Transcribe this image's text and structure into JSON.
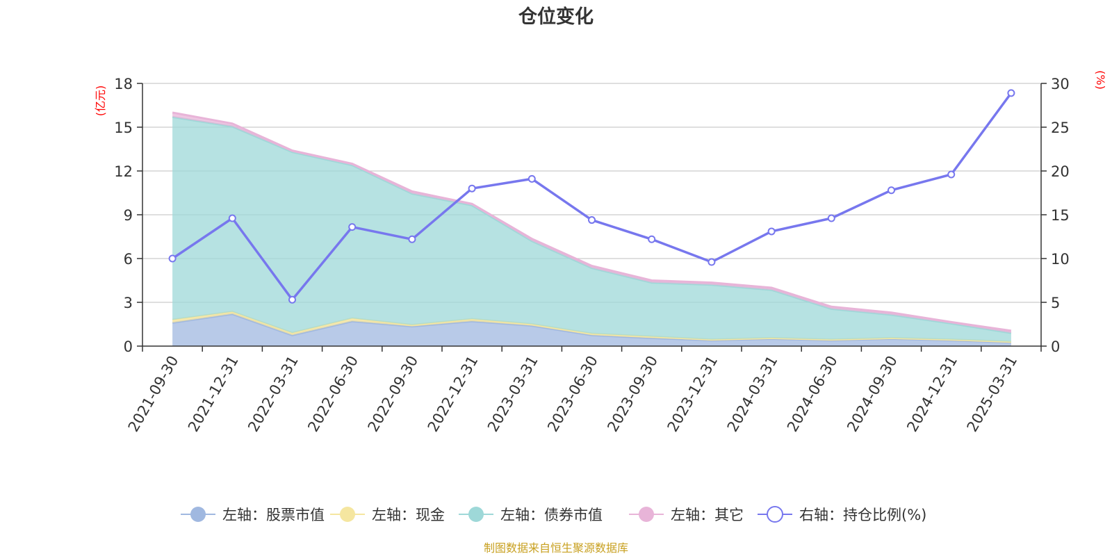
{
  "chart_data": {
    "type": "area",
    "title": "仓位变化",
    "left_unit": "(亿元)",
    "right_unit": "(%)",
    "source": "制图数据来自恒生聚源数据库",
    "categories": [
      "2021-09-30",
      "2021-12-31",
      "2022-03-31",
      "2022-06-30",
      "2022-09-30",
      "2022-12-31",
      "2023-03-31",
      "2023-06-30",
      "2023-09-30",
      "2023-12-31",
      "2024-03-31",
      "2024-06-30",
      "2024-09-30",
      "2024-12-31",
      "2025-03-31"
    ],
    "left_axis": {
      "min": 0,
      "max": 18,
      "ticks": [
        0,
        3,
        6,
        9,
        12,
        15,
        18
      ]
    },
    "right_axis": {
      "min": 0,
      "max": 30,
      "ticks": [
        0,
        5,
        10,
        15,
        20,
        25,
        30
      ]
    },
    "series": [
      {
        "name": "左轴：股票市值",
        "axis": "left",
        "stack": true,
        "color": "#a0b8e0",
        "values": [
          1.6,
          2.2,
          0.75,
          1.7,
          1.35,
          1.7,
          1.4,
          0.75,
          0.55,
          0.4,
          0.5,
          0.4,
          0.5,
          0.4,
          0.25
        ]
      },
      {
        "name": "左轴：现金",
        "axis": "left",
        "stack": true,
        "color": "#f5e6a0",
        "values": [
          0.2,
          0.15,
          0.15,
          0.2,
          0.1,
          0.15,
          0.1,
          0.1,
          0.1,
          0.05,
          0.05,
          0.05,
          0.05,
          0.05,
          0.05
        ]
      },
      {
        "name": "左轴：债券市值",
        "axis": "left",
        "stack": true,
        "color": "#9ed8d8",
        "values": [
          13.9,
          12.7,
          12.4,
          10.5,
          9.0,
          7.8,
          5.7,
          4.5,
          3.7,
          3.75,
          3.3,
          2.1,
          1.6,
          1.1,
          0.6
        ]
      },
      {
        "name": "左轴：其它",
        "axis": "left",
        "stack": true,
        "color": "#e8b4d8",
        "values": [
          0.3,
          0.2,
          0.1,
          0.1,
          0.15,
          0.1,
          0.15,
          0.15,
          0.15,
          0.15,
          0.15,
          0.15,
          0.15,
          0.1,
          0.15
        ]
      },
      {
        "name": "右轴：持仓比例(%)",
        "axis": "right",
        "type": "line",
        "color": "#7777ee",
        "values": [
          10.0,
          14.6,
          5.3,
          13.6,
          12.2,
          18.0,
          19.1,
          14.4,
          12.2,
          9.6,
          13.1,
          14.6,
          17.8,
          19.6,
          28.9
        ]
      }
    ],
    "legend_position": "bottom",
    "grid": true
  }
}
